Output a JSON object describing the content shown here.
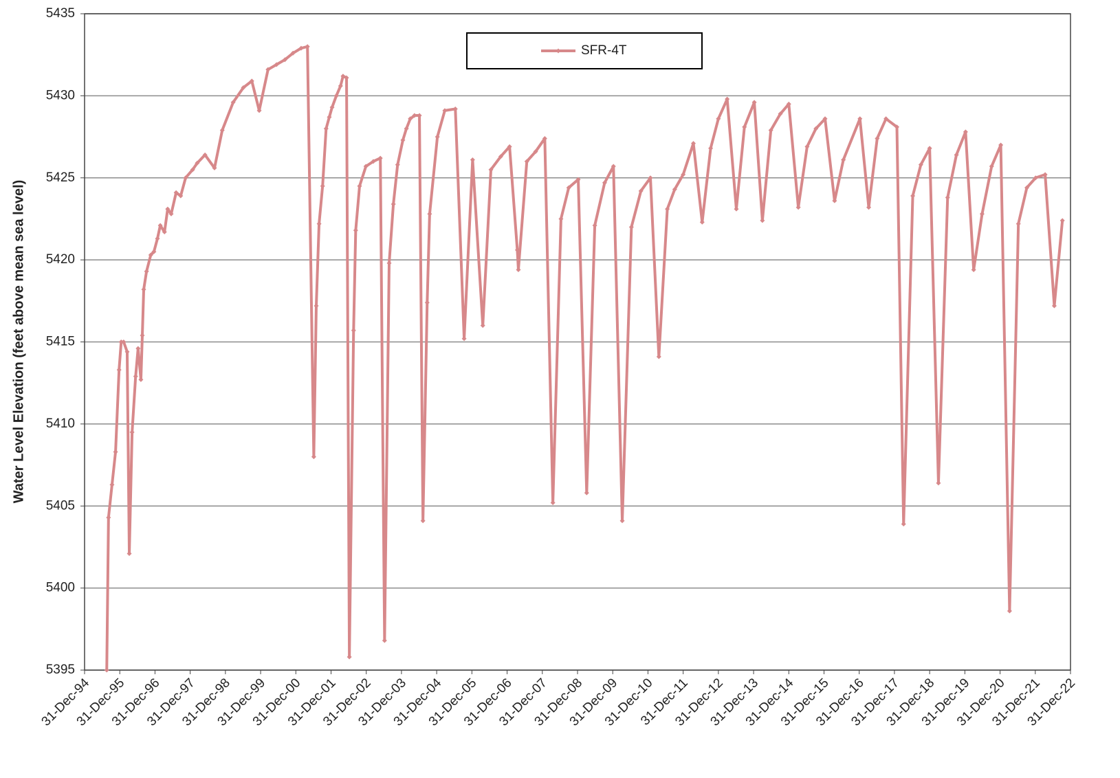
{
  "chart_data": {
    "type": "line",
    "y_label": "Water Level Elevation (feet above mean sea level)",
    "x": [
      1995.63,
      1995.68,
      1995.78,
      1995.88,
      1995.98,
      1996.04,
      1996.11,
      1996.21,
      1996.27,
      1996.35,
      1996.45,
      1996.52,
      1996.6,
      1996.64,
      1996.68,
      1996.76,
      1996.88,
      1996.97,
      1997.07,
      1997.15,
      1997.27,
      1997.36,
      1997.46,
      1997.6,
      1997.73,
      1997.87,
      1998.07,
      1998.2,
      1998.42,
      1998.69,
      1998.91,
      1999.22,
      1999.51,
      1999.75,
      1999.96,
      2000.21,
      2000.45,
      2000.69,
      2000.92,
      2001.15,
      2001.33,
      2001.51,
      2001.58,
      2001.66,
      2001.76,
      2001.86,
      2001.95,
      2002.03,
      2002.15,
      2002.27,
      2002.34,
      2002.44,
      2002.52,
      2002.64,
      2002.7,
      2002.81,
      2002.99,
      2003.2,
      2003.4,
      2003.52,
      2003.65,
      2003.77,
      2003.89,
      2004.04,
      2004.14,
      2004.25,
      2004.37,
      2004.51,
      2004.61,
      2004.73,
      2004.8,
      2005.02,
      2005.23,
      2005.53,
      2005.78,
      2006.02,
      2006.31,
      2006.54,
      2006.82,
      2007.07,
      2007.29,
      2007.32,
      2007.56,
      2007.81,
      2008.07,
      2008.3,
      2008.53,
      2008.75,
      2009.02,
      2009.26,
      2009.49,
      2009.77,
      2010.02,
      2010.27,
      2010.53,
      2010.8,
      2011.07,
      2011.31,
      2011.55,
      2011.76,
      2012.0,
      2012.29,
      2012.54,
      2012.78,
      2013.0,
      2013.25,
      2013.51,
      2013.74,
      2014.02,
      2014.25,
      2014.49,
      2014.76,
      2015.0,
      2015.27,
      2015.52,
      2015.77,
      2016.03,
      2016.3,
      2016.55,
      2017.02,
      2017.27,
      2017.51,
      2017.76,
      2018.07,
      2018.26,
      2018.52,
      2018.75,
      2019.0,
      2019.25,
      2019.51,
      2019.76,
      2020.02,
      2020.25,
      2020.49,
      2020.76,
      2021.02,
      2021.27,
      2021.52,
      2021.76,
      2022.01,
      2022.28,
      2022.54,
      2022.77
    ],
    "series": [
      {
        "name": "SFR-4T",
        "color": "#d7888a",
        "values": [
          5395,
          5404.3,
          5406.3,
          5408.3,
          5413.3,
          5415.0,
          5415.0,
          5414.4,
          5402.1,
          5409.5,
          5412.9,
          5414.6,
          5412.7,
          5415.4,
          5418.2,
          5419.3,
          5420.3,
          5420.5,
          5421.3,
          5422.1,
          5421.7,
          5423.1,
          5422.8,
          5424.1,
          5423.9,
          5425.0,
          5425.5,
          5425.9,
          5426.4,
          5425.6,
          5427.9,
          5429.6,
          5430.5,
          5430.9,
          5429.1,
          5431.6,
          5431.9,
          5432.2,
          5432.6,
          5432.9,
          5433.0,
          5408.0,
          5417.2,
          5422.2,
          5424.5,
          5428.0,
          5428.7,
          5429.3,
          5430.0,
          5430.6,
          5431.2,
          5431.1,
          5395.8,
          5415.7,
          5421.8,
          5424.5,
          5425.7,
          5426.0,
          5426.2,
          5396.8,
          5419.8,
          5423.4,
          5425.8,
          5427.3,
          5428.0,
          5428.6,
          5428.8,
          5428.8,
          5404.1,
          5417.4,
          5422.8,
          5427.5,
          5429.1,
          5429.2,
          5415.2,
          5426.1,
          5416.0,
          5425.5,
          5426.3,
          5426.9,
          5420.6,
          5419.4,
          5426.0,
          5426.6,
          5427.4,
          5405.2,
          5422.5,
          5424.4,
          5424.9,
          5405.8,
          5422.1,
          5424.7,
          5425.7,
          5404.1,
          5422.0,
          5424.2,
          5425.0,
          5414.1,
          5423.1,
          5424.3,
          5425.2,
          5427.1,
          5422.3,
          5426.8,
          5428.6,
          5429.8,
          5423.1,
          5428.1,
          5429.6,
          5422.4,
          5427.9,
          5428.9,
          5429.5,
          5423.2,
          5426.9,
          5428.0,
          5428.6,
          5423.6,
          5426.1,
          5428.6,
          5423.2,
          5427.4,
          5428.6,
          5428.1,
          5403.9,
          5423.9,
          5425.8,
          5426.8,
          5406.4,
          5423.8,
          5426.4,
          5427.8,
          5419.4,
          5422.8,
          5425.7,
          5427.0,
          5398.6,
          5422.2,
          5424.4,
          5425.0,
          5425.2,
          5417.2,
          5422.4
        ]
      }
    ],
    "xlim": [
      1995,
      2023
    ],
    "xticks": [
      {
        "value": 1995,
        "label": "31-Dec-94"
      },
      {
        "value": 1996,
        "label": "31-Dec-95"
      },
      {
        "value": 1997,
        "label": "31-Dec-96"
      },
      {
        "value": 1998,
        "label": "31-Dec-97"
      },
      {
        "value": 1999,
        "label": "31-Dec-98"
      },
      {
        "value": 2000,
        "label": "31-Dec-99"
      },
      {
        "value": 2001,
        "label": "31-Dec-00"
      },
      {
        "value": 2002,
        "label": "31-Dec-01"
      },
      {
        "value": 2003,
        "label": "31-Dec-02"
      },
      {
        "value": 2004,
        "label": "31-Dec-03"
      },
      {
        "value": 2005,
        "label": "31-Dec-04"
      },
      {
        "value": 2006,
        "label": "31-Dec-05"
      },
      {
        "value": 2007,
        "label": "31-Dec-06"
      },
      {
        "value": 2008,
        "label": "31-Dec-07"
      },
      {
        "value": 2009,
        "label": "31-Dec-08"
      },
      {
        "value": 2010,
        "label": "31-Dec-09"
      },
      {
        "value": 2011,
        "label": "31-Dec-10"
      },
      {
        "value": 2012,
        "label": "31-Dec-11"
      },
      {
        "value": 2013,
        "label": "31-Dec-12"
      },
      {
        "value": 2014,
        "label": "31-Dec-13"
      },
      {
        "value": 2015,
        "label": "31-Dec-14"
      },
      {
        "value": 2016,
        "label": "31-Dec-15"
      },
      {
        "value": 2017,
        "label": "31-Dec-16"
      },
      {
        "value": 2018,
        "label": "31-Dec-17"
      },
      {
        "value": 2019,
        "label": "31-Dec-18"
      },
      {
        "value": 2020,
        "label": "31-Dec-19"
      },
      {
        "value": 2021,
        "label": "31-Dec-20"
      },
      {
        "value": 2022,
        "label": "31-Dec-21"
      },
      {
        "value": 2023,
        "label": "31-Dec-22"
      }
    ],
    "ylim": [
      5395,
      5435
    ],
    "yticks": [
      5395,
      5400,
      5405,
      5410,
      5415,
      5420,
      5425,
      5430,
      5435
    ],
    "grid": true,
    "legend": "upper center"
  }
}
